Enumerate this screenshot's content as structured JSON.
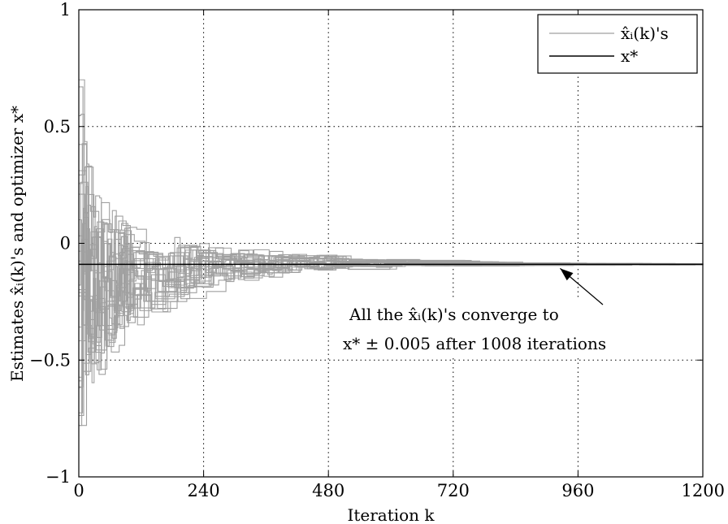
{
  "chart_data": {
    "type": "line",
    "xlabel": "Iteration k",
    "ylabel": "Estimates x̂ᵢ(k)'s and optimizer x*",
    "xlim": [
      0,
      1200
    ],
    "ylim": [
      -1,
      1
    ],
    "xticks": [
      0,
      240,
      480,
      720,
      960,
      1200
    ],
    "yticks": [
      -1,
      -0.5,
      0,
      0.5,
      1
    ],
    "ytick_labels": [
      "−1",
      "−0.5",
      "0",
      "0.5",
      "1"
    ],
    "grid": true,
    "legend_position": "top-right",
    "legend": [
      {
        "label": "x̂ᵢ(k)'s",
        "color": "#a0a0a0"
      },
      {
        "label": "x*",
        "color": "#000000"
      }
    ],
    "optimizer_value": -0.09,
    "estimates": {
      "color": "#a0a0a0",
      "initial_min": -0.78,
      "initial_max": 0.7,
      "band_over_k": {
        "k": [
          0,
          20,
          40,
          80,
          120,
          160,
          200,
          240,
          300,
          360,
          420,
          480,
          540,
          600,
          720,
          840,
          960,
          1008,
          1200
        ],
        "upper": [
          0.7,
          0.34,
          0.22,
          0.12,
          0.07,
          0.04,
          0.02,
          0.01,
          -0.01,
          -0.03,
          -0.04,
          -0.05,
          -0.06,
          -0.067,
          -0.076,
          -0.082,
          -0.085,
          -0.085,
          -0.088
        ],
        "lower": [
          -0.78,
          -0.66,
          -0.6,
          -0.44,
          -0.36,
          -0.3,
          -0.25,
          -0.21,
          -0.17,
          -0.15,
          -0.13,
          -0.12,
          -0.11,
          -0.105,
          -0.1,
          -0.096,
          -0.095,
          -0.095,
          -0.092
        ]
      }
    },
    "annotation": {
      "line1": "All the x̂ᵢ(k)'s converge to",
      "line2": "x* ± 0.005 after 1008 iterations",
      "arrow_target": {
        "x": 960,
        "y": -0.09
      }
    }
  }
}
